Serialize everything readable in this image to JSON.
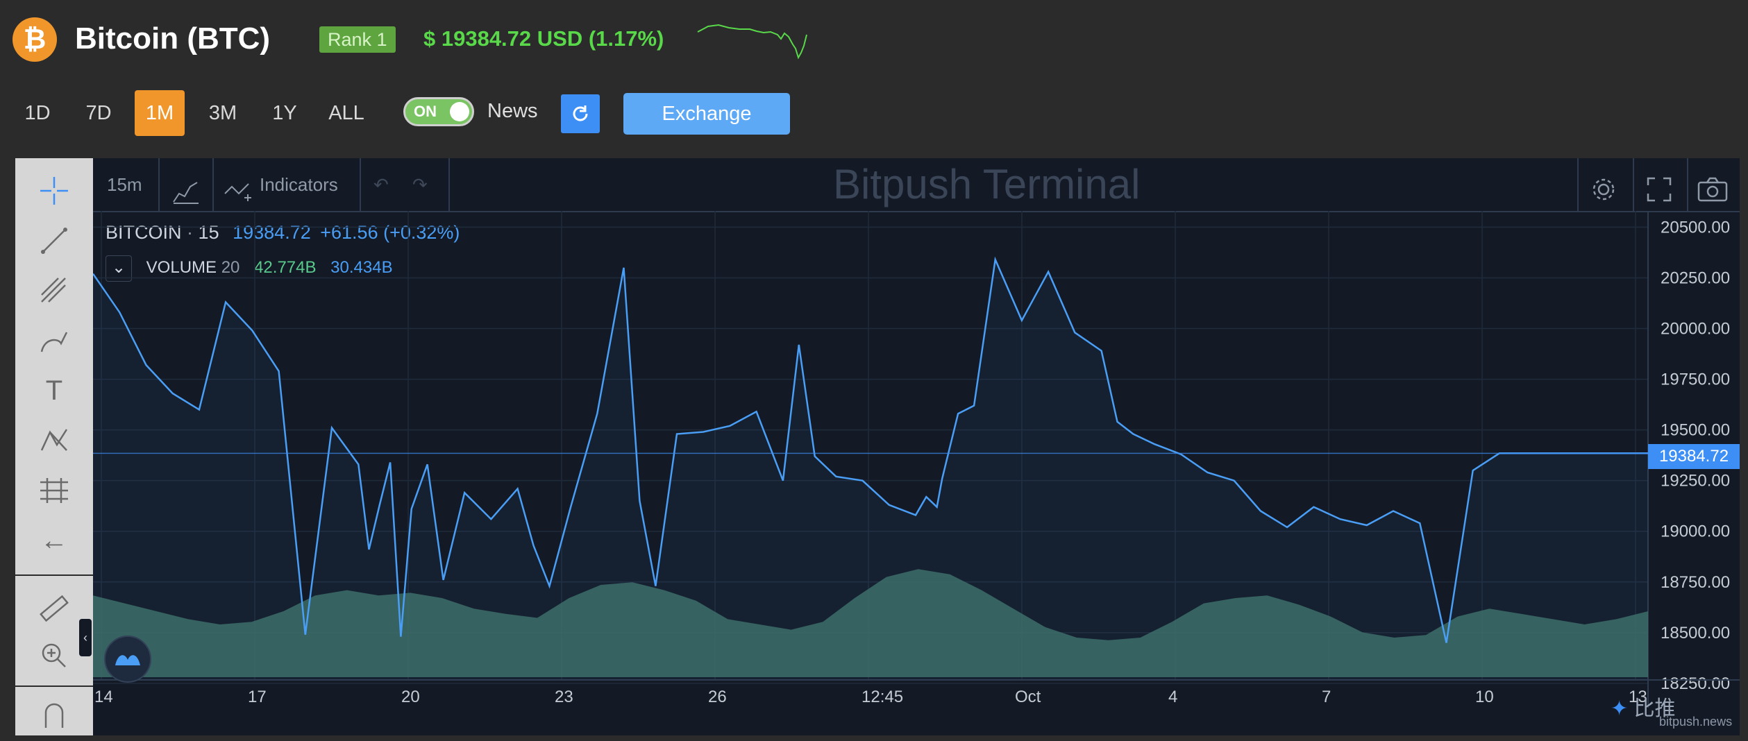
{
  "header": {
    "logo_glyph": "₿",
    "title": "Bitcoin (BTC)",
    "rank": "Rank 1",
    "price": "$ 19384.72 USD (1.17%)",
    "price_color": "#59d94a"
  },
  "ranges": [
    "1D",
    "7D",
    "1M",
    "3M",
    "1Y",
    "ALL"
  ],
  "active_range": "1M",
  "toggle": {
    "label": "ON",
    "state": true
  },
  "news_label": "News",
  "exchange_label": "Exchange",
  "chart_toolbar": {
    "interval": "15m",
    "indicators_label": "Indicators",
    "watermark": "Bitpush Terminal"
  },
  "legend": {
    "symbol": "BITCOIN",
    "dot": "·",
    "interval": "15",
    "value": "19384.72",
    "change": "+61.56 (+0.32%)",
    "volume_label": "VOLUME",
    "volume_period": "20",
    "volume_value_1": "42.774B",
    "volume_value_2": "30.434B"
  },
  "branding": {
    "name": "比推",
    "site": "bitpush.news"
  },
  "chart_data": {
    "type": "line",
    "title": "",
    "y_ticks": [
      "20500.00",
      "20250.00",
      "20000.00",
      "19750.00",
      "19500.00",
      "19250.00",
      "19000.00",
      "18750.00",
      "18500.00",
      "18250.00"
    ],
    "x_ticks": [
      "14",
      "17",
      "20",
      "23",
      "26",
      "12:45",
      "Oct",
      "4",
      "7",
      "10",
      "13"
    ],
    "current_price": "19384.72",
    "ylim": [
      18130,
      20580
    ],
    "series": [
      {
        "name": "BITCOIN",
        "color": "#4a9ef5",
        "x": [
          0,
          0.5,
          1,
          1.5,
          2,
          2.5,
          3,
          3.5,
          4,
          4.5,
          5,
          5.2,
          5.4,
          5.6,
          5.8,
          6,
          6.3,
          6.6,
          7,
          7.5,
          8,
          8.3,
          8.6,
          9,
          9.5,
          10,
          10.3,
          10.6,
          11,
          11.5,
          12,
          12.5,
          13,
          13.3,
          13.6,
          14,
          14.5,
          15,
          15.5,
          15.7,
          15.9,
          16,
          16.3,
          16.6,
          17,
          17.5,
          18,
          18.5,
          19,
          19.3,
          19.6,
          20,
          20.5,
          21,
          21.5,
          22,
          22.5,
          23,
          23.5,
          24,
          24.5,
          25,
          25.5,
          26,
          26.5,
          27,
          27.5,
          28,
          28.5,
          29,
          29.3
        ],
        "values": [
          20270,
          20080,
          19820,
          19680,
          19600,
          20130,
          19990,
          19790,
          18490,
          19510,
          19330,
          18910,
          19130,
          19340,
          18480,
          19110,
          19330,
          18760,
          19190,
          19060,
          19210,
          18930,
          18730,
          19120,
          19580,
          20300,
          19150,
          18730,
          19480,
          19490,
          19520,
          19590,
          19250,
          19920,
          19370,
          19270,
          19250,
          19130,
          19080,
          19170,
          19120,
          19260,
          19580,
          19620,
          20340,
          20040,
          20280,
          19980,
          19890,
          19540,
          19480,
          19430,
          19380,
          19290,
          19250,
          19100,
          19020,
          19120,
          19060,
          19030,
          19100,
          19040,
          18450,
          19300,
          19384.72,
          19384.72,
          19384.72,
          19384.72,
          19384.72,
          19384.72,
          19384.72
        ]
      }
    ],
    "volume_series": {
      "name": "VOLUME",
      "color": "#3d6c63",
      "values": [
        0.62,
        0.56,
        0.5,
        0.44,
        0.4,
        0.42,
        0.5,
        0.62,
        0.66,
        0.62,
        0.64,
        0.6,
        0.52,
        0.48,
        0.45,
        0.6,
        0.7,
        0.72,
        0.66,
        0.58,
        0.44,
        0.4,
        0.36,
        0.42,
        0.6,
        0.76,
        0.82,
        0.78,
        0.66,
        0.52,
        0.38,
        0.3,
        0.28,
        0.3,
        0.42,
        0.56,
        0.6,
        0.62,
        0.55,
        0.46,
        0.34,
        0.3,
        0.32,
        0.46,
        0.52,
        0.48,
        0.44,
        0.4,
        0.44,
        0.5
      ]
    }
  }
}
